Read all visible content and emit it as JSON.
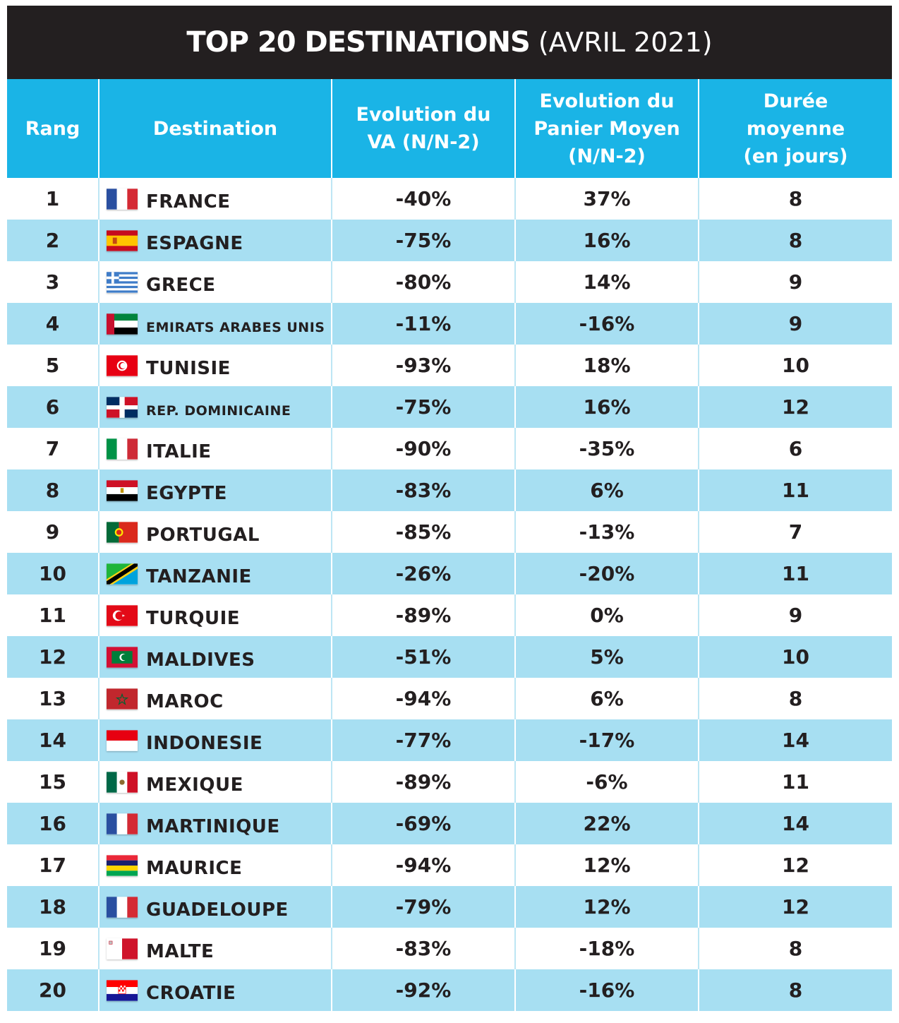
{
  "title": {
    "strong": "TOP 20 DESTINATIONS",
    "light": "(AVRIL 2021)"
  },
  "headers": {
    "rank": "Rang",
    "destination": "Destination",
    "va": [
      "Evolution du",
      "VA (N/N-2)"
    ],
    "panier": [
      "Evolution du",
      "Panier Moyen",
      "(N/N-2)"
    ],
    "duree": [
      "Durée",
      "moyenne",
      "(en jours)"
    ]
  },
  "rows": [
    {
      "rank": "1",
      "name": "FRANCE",
      "flag": "france-flag-icon",
      "va": "-40%",
      "panier": "37%",
      "duree": "8"
    },
    {
      "rank": "2",
      "name": "ESPAGNE",
      "flag": "spain-flag-icon",
      "va": "-75%",
      "panier": "16%",
      "duree": "8"
    },
    {
      "rank": "3",
      "name": "GRECE",
      "flag": "greece-flag-icon",
      "va": "-80%",
      "panier": "14%",
      "duree": "9"
    },
    {
      "rank": "4",
      "name": "EMIRATS ARABES UNIS",
      "flag": "uae-flag-icon",
      "va": "-11%",
      "panier": "-16%",
      "duree": "9",
      "small": true
    },
    {
      "rank": "5",
      "name": "TUNISIE",
      "flag": "tunisia-flag-icon",
      "va": "-93%",
      "panier": "18%",
      "duree": "10"
    },
    {
      "rank": "6",
      "name": "REP. DOMINICAINE",
      "flag": "dominican-republic-flag-icon",
      "va": "-75%",
      "panier": "16%",
      "duree": "12",
      "small": true
    },
    {
      "rank": "7",
      "name": "ITALIE",
      "flag": "italy-flag-icon",
      "va": "-90%",
      "panier": "-35%",
      "duree": "6"
    },
    {
      "rank": "8",
      "name": "EGYPTE",
      "flag": "egypt-flag-icon",
      "va": "-83%",
      "panier": "6%",
      "duree": "11"
    },
    {
      "rank": "9",
      "name": "PORTUGAL",
      "flag": "portugal-flag-icon",
      "va": "-85%",
      "panier": "-13%",
      "duree": "7"
    },
    {
      "rank": "10",
      "name": "TANZANIE",
      "flag": "tanzania-flag-icon",
      "va": "-26%",
      "panier": "-20%",
      "duree": "11"
    },
    {
      "rank": "11",
      "name": "TURQUIE",
      "flag": "turkey-flag-icon",
      "va": "-89%",
      "panier": "0%",
      "duree": "9"
    },
    {
      "rank": "12",
      "name": "MALDIVES",
      "flag": "maldives-flag-icon",
      "va": "-51%",
      "panier": "5%",
      "duree": "10"
    },
    {
      "rank": "13",
      "name": "MAROC",
      "flag": "morocco-flag-icon",
      "va": "-94%",
      "panier": "6%",
      "duree": "8"
    },
    {
      "rank": "14",
      "name": "INDONESIE",
      "flag": "indonesia-flag-icon",
      "va": "-77%",
      "panier": "-17%",
      "duree": "14"
    },
    {
      "rank": "15",
      "name": "MEXIQUE",
      "flag": "mexico-flag-icon",
      "va": "-89%",
      "panier": "-6%",
      "duree": "11"
    },
    {
      "rank": "16",
      "name": "MARTINIQUE",
      "flag": "france-flag-icon",
      "va": "-69%",
      "panier": "22%",
      "duree": "14"
    },
    {
      "rank": "17",
      "name": "MAURICE",
      "flag": "mauritius-flag-icon",
      "va": "-94%",
      "panier": "12%",
      "duree": "12"
    },
    {
      "rank": "18",
      "name": "GUADELOUPE",
      "flag": "france-flag-icon",
      "va": "-79%",
      "panier": "12%",
      "duree": "12"
    },
    {
      "rank": "19",
      "name": "MALTE",
      "flag": "malta-flag-icon",
      "va": "-83%",
      "panier": "-18%",
      "duree": "8"
    },
    {
      "rank": "20",
      "name": "CROATIE",
      "flag": "croatia-flag-icon",
      "va": "-92%",
      "panier": "-16%",
      "duree": "8"
    }
  ]
}
